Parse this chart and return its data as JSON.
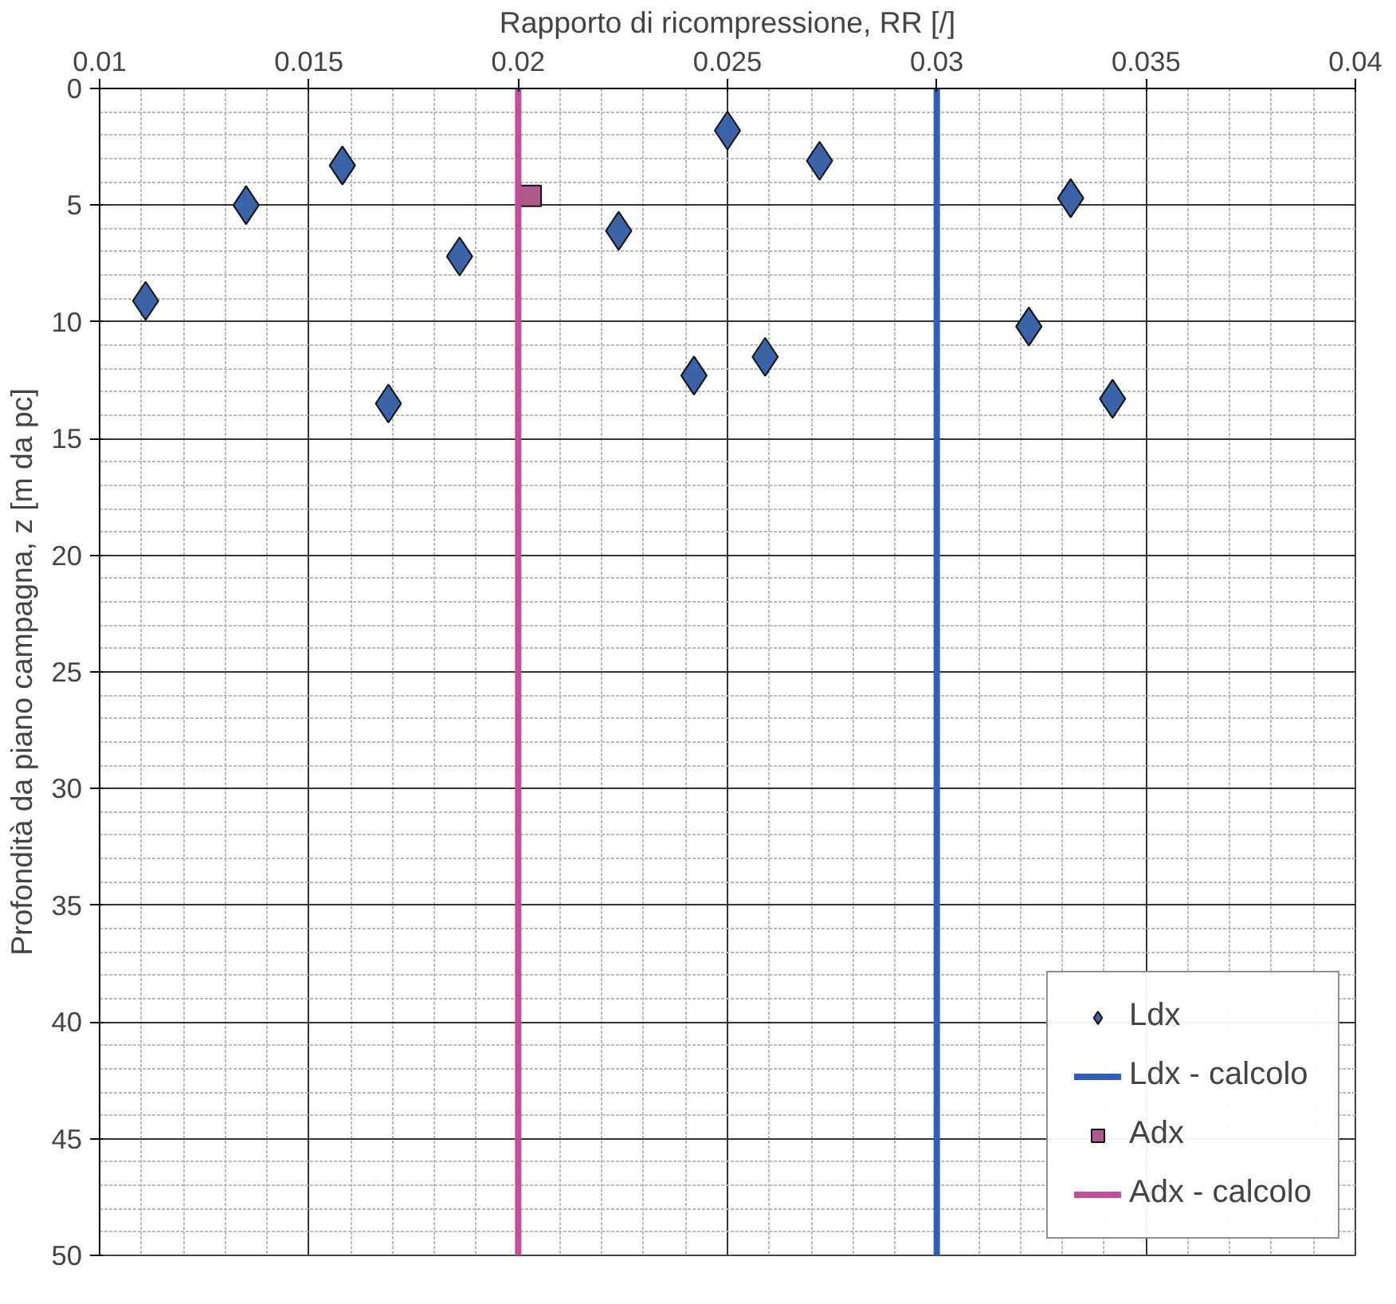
{
  "chart_data": {
    "type": "scatter",
    "xlabel": "Rapporto di ricompressione, RR [/]",
    "ylabel": "Profondità da piano campagna, z [m da pc]",
    "xlim": [
      0.01,
      0.04
    ],
    "xticks": [
      0.01,
      0.015,
      0.02,
      0.025,
      0.03,
      0.035,
      0.04
    ],
    "ylim": [
      50,
      0
    ],
    "yticks": [
      0,
      5,
      10,
      15,
      20,
      25,
      30,
      35,
      40,
      45,
      50
    ],
    "grid": true,
    "legend": "bottom right",
    "series": [
      {
        "name": "Ldx",
        "marker": "diamond",
        "color": "#3b64a8",
        "x": [
          0.0111,
          0.0135,
          0.0158,
          0.0169,
          0.0186,
          0.0224,
          0.025,
          0.0242,
          0.0259,
          0.0272,
          0.0322,
          0.0332,
          0.0342
        ],
        "values": [
          9.1,
          5.0,
          3.3,
          13.5,
          7.2,
          6.1,
          1.8,
          12.3,
          11.5,
          3.1,
          10.2,
          4.7,
          13.3
        ]
      },
      {
        "name": "Ldx - calcolo",
        "type": "line",
        "color": "#2f5fb8",
        "x": [
          0.03,
          0.03
        ],
        "values": [
          0,
          50
        ]
      },
      {
        "name": "Adx",
        "marker": "square",
        "color": "#b05a8a",
        "x": [
          0.0203
        ],
        "values": [
          4.6
        ]
      },
      {
        "name": "Adx - calcolo",
        "type": "line",
        "color": "#c0509a",
        "x": [
          0.02,
          0.02
        ],
        "values": [
          0,
          50
        ]
      }
    ]
  }
}
